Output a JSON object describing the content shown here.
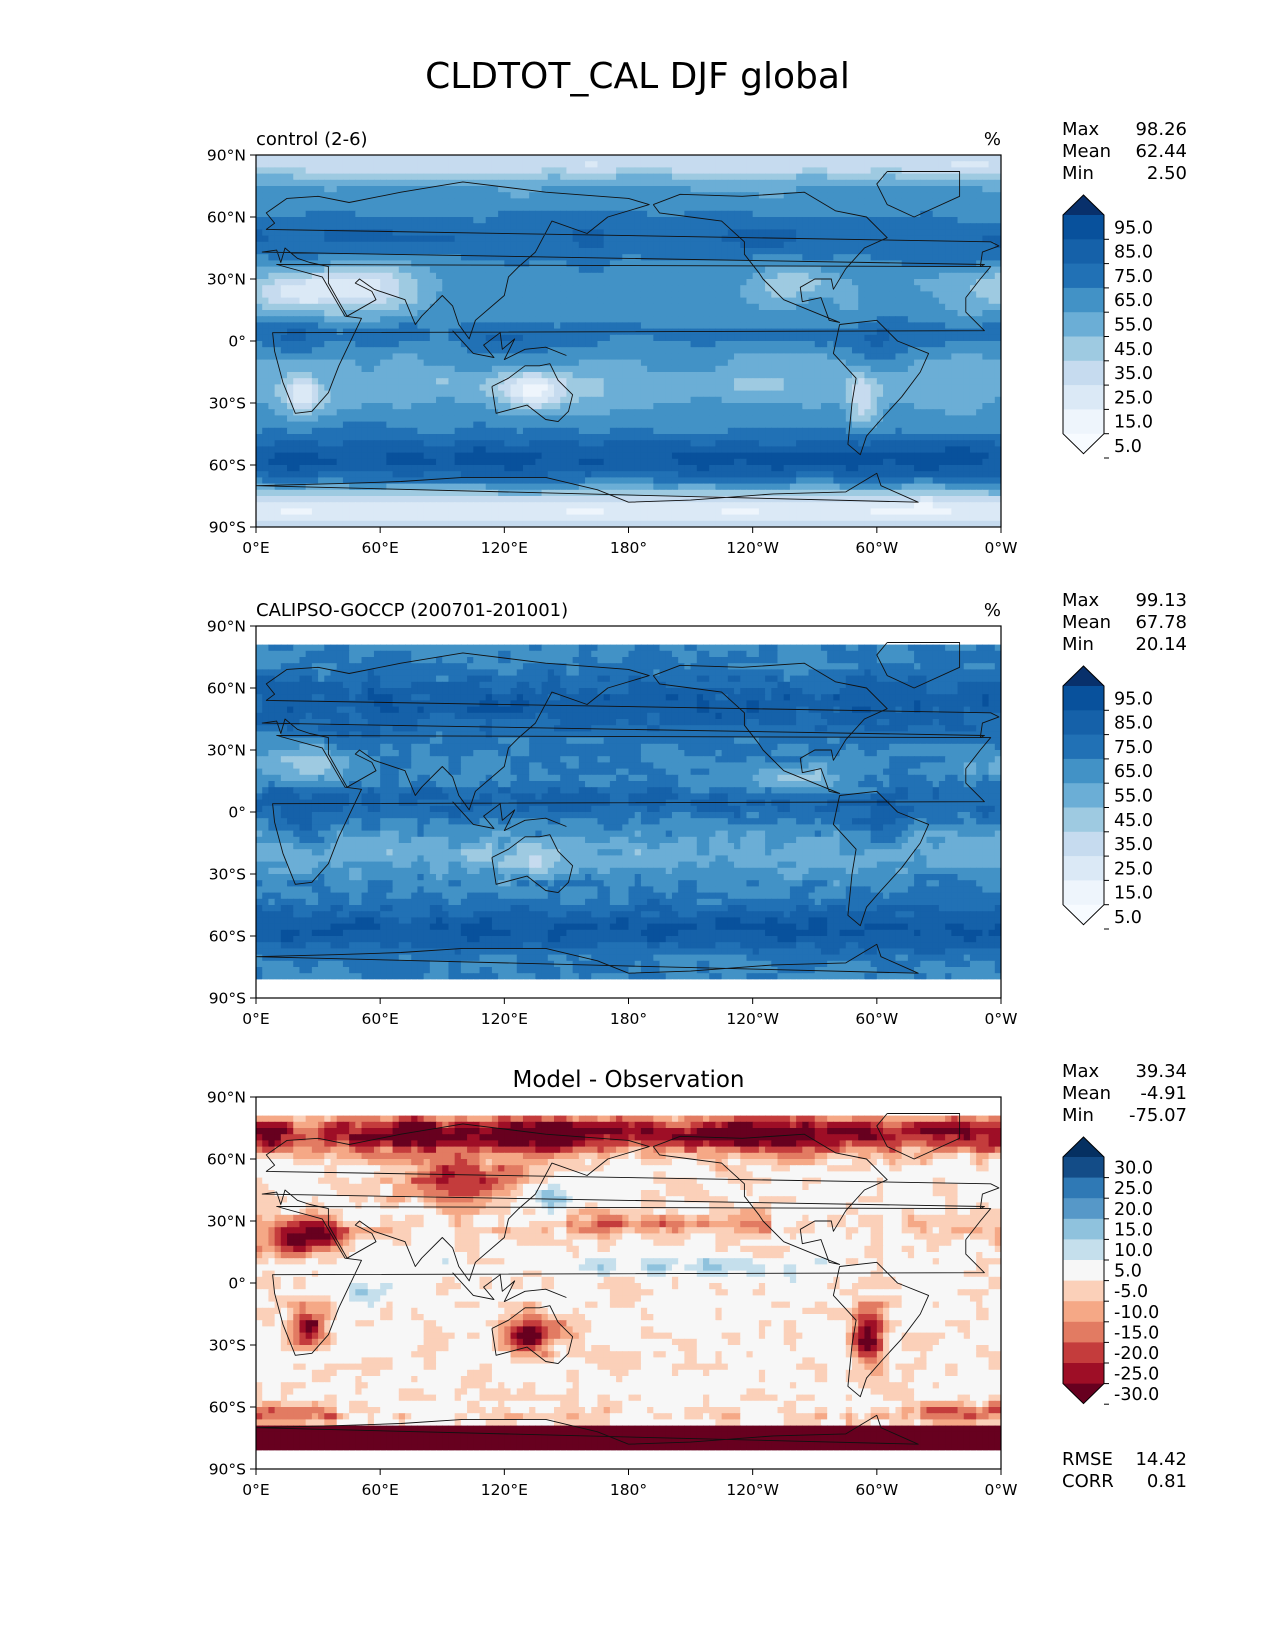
{
  "figure": {
    "title": "CLDTOT_CAL DJF global"
  },
  "chart_data": [
    {
      "type": "heatmap",
      "title": "control (2-6)",
      "units": "%",
      "xlabel": "",
      "ylabel": "",
      "xticks": [
        "0°E",
        "60°E",
        "120°E",
        "180°",
        "120°W",
        "60°W",
        "0°W"
      ],
      "yticks": [
        "90°N",
        "60°N",
        "30°N",
        "0°",
        "30°S",
        "60°S",
        "90°S"
      ],
      "xlim": [
        0,
        360
      ],
      "ylim": [
        -90,
        90
      ],
      "stats": [
        {
          "label": "Max",
          "value": "98.26"
        },
        {
          "label": "Mean",
          "value": "62.44"
        },
        {
          "label": "Min",
          "value": "2.50"
        }
      ],
      "colorbar": {
        "ticks": [
          "95.0",
          "85.0",
          "75.0",
          "65.0",
          "55.0",
          "45.0",
          "35.0",
          "25.0",
          "15.0",
          "5.0"
        ],
        "colors": [
          "#08306b",
          "#08519c",
          "#1561a9",
          "#2171b5",
          "#4292c6",
          "#6baed6",
          "#9ecae1",
          "#c6dbef",
          "#dbe9f6",
          "#eef5fc",
          "#f7fbff"
        ]
      },
      "field": "model"
    },
    {
      "type": "heatmap",
      "title": "CALIPSO-GOCCP (200701-201001)",
      "units": "%",
      "xlabel": "",
      "ylabel": "",
      "xticks": [
        "0°E",
        "60°E",
        "120°E",
        "180°",
        "120°W",
        "60°W",
        "0°W"
      ],
      "yticks": [
        "90°N",
        "60°N",
        "30°N",
        "0°",
        "30°S",
        "60°S",
        "90°S"
      ],
      "xlim": [
        0,
        360
      ],
      "ylim": [
        -90,
        90
      ],
      "stats": [
        {
          "label": "Max",
          "value": "99.13"
        },
        {
          "label": "Mean",
          "value": "67.78"
        },
        {
          "label": "Min",
          "value": "20.14"
        }
      ],
      "colorbar": {
        "ticks": [
          "95.0",
          "85.0",
          "75.0",
          "65.0",
          "55.0",
          "45.0",
          "35.0",
          "25.0",
          "15.0",
          "5.0"
        ],
        "colors": [
          "#08306b",
          "#08519c",
          "#1561a9",
          "#2171b5",
          "#4292c6",
          "#6baed6",
          "#9ecae1",
          "#c6dbef",
          "#dbe9f6",
          "#eef5fc",
          "#f7fbff"
        ]
      },
      "field": "obs"
    },
    {
      "type": "heatmap",
      "title": "Model - Observation",
      "units": "",
      "xlabel": "",
      "ylabel": "",
      "xticks": [
        "0°E",
        "60°E",
        "120°E",
        "180°",
        "120°W",
        "60°W",
        "0°W"
      ],
      "yticks": [
        "90°N",
        "60°N",
        "30°N",
        "0°",
        "30°S",
        "60°S",
        "90°S"
      ],
      "xlim": [
        0,
        360
      ],
      "ylim": [
        -90,
        90
      ],
      "stats": [
        {
          "label": "Max",
          "value": "39.34"
        },
        {
          "label": "Mean",
          "value": "-4.91"
        },
        {
          "label": "Min",
          "value": "-75.07"
        }
      ],
      "metrics": [
        {
          "label": "RMSE",
          "value": "14.42"
        },
        {
          "label": "CORR",
          "value": "0.81"
        }
      ],
      "colorbar": {
        "ticks": [
          "30.0",
          "25.0",
          "20.0",
          "15.0",
          "10.0",
          "5.0",
          "-5.0",
          "-10.0",
          "-15.0",
          "-20.0",
          "-25.0",
          "-30.0"
        ],
        "colors": [
          "#053061",
          "#134c87",
          "#2f79b5",
          "#5698c8",
          "#8fc2dd",
          "#c5dfec",
          "#f7f7f7",
          "#fbd0b9",
          "#f5a886",
          "#e27b62",
          "#c43c3c",
          "#9e0e26",
          "#67001f"
        ]
      },
      "field": "diff"
    }
  ]
}
